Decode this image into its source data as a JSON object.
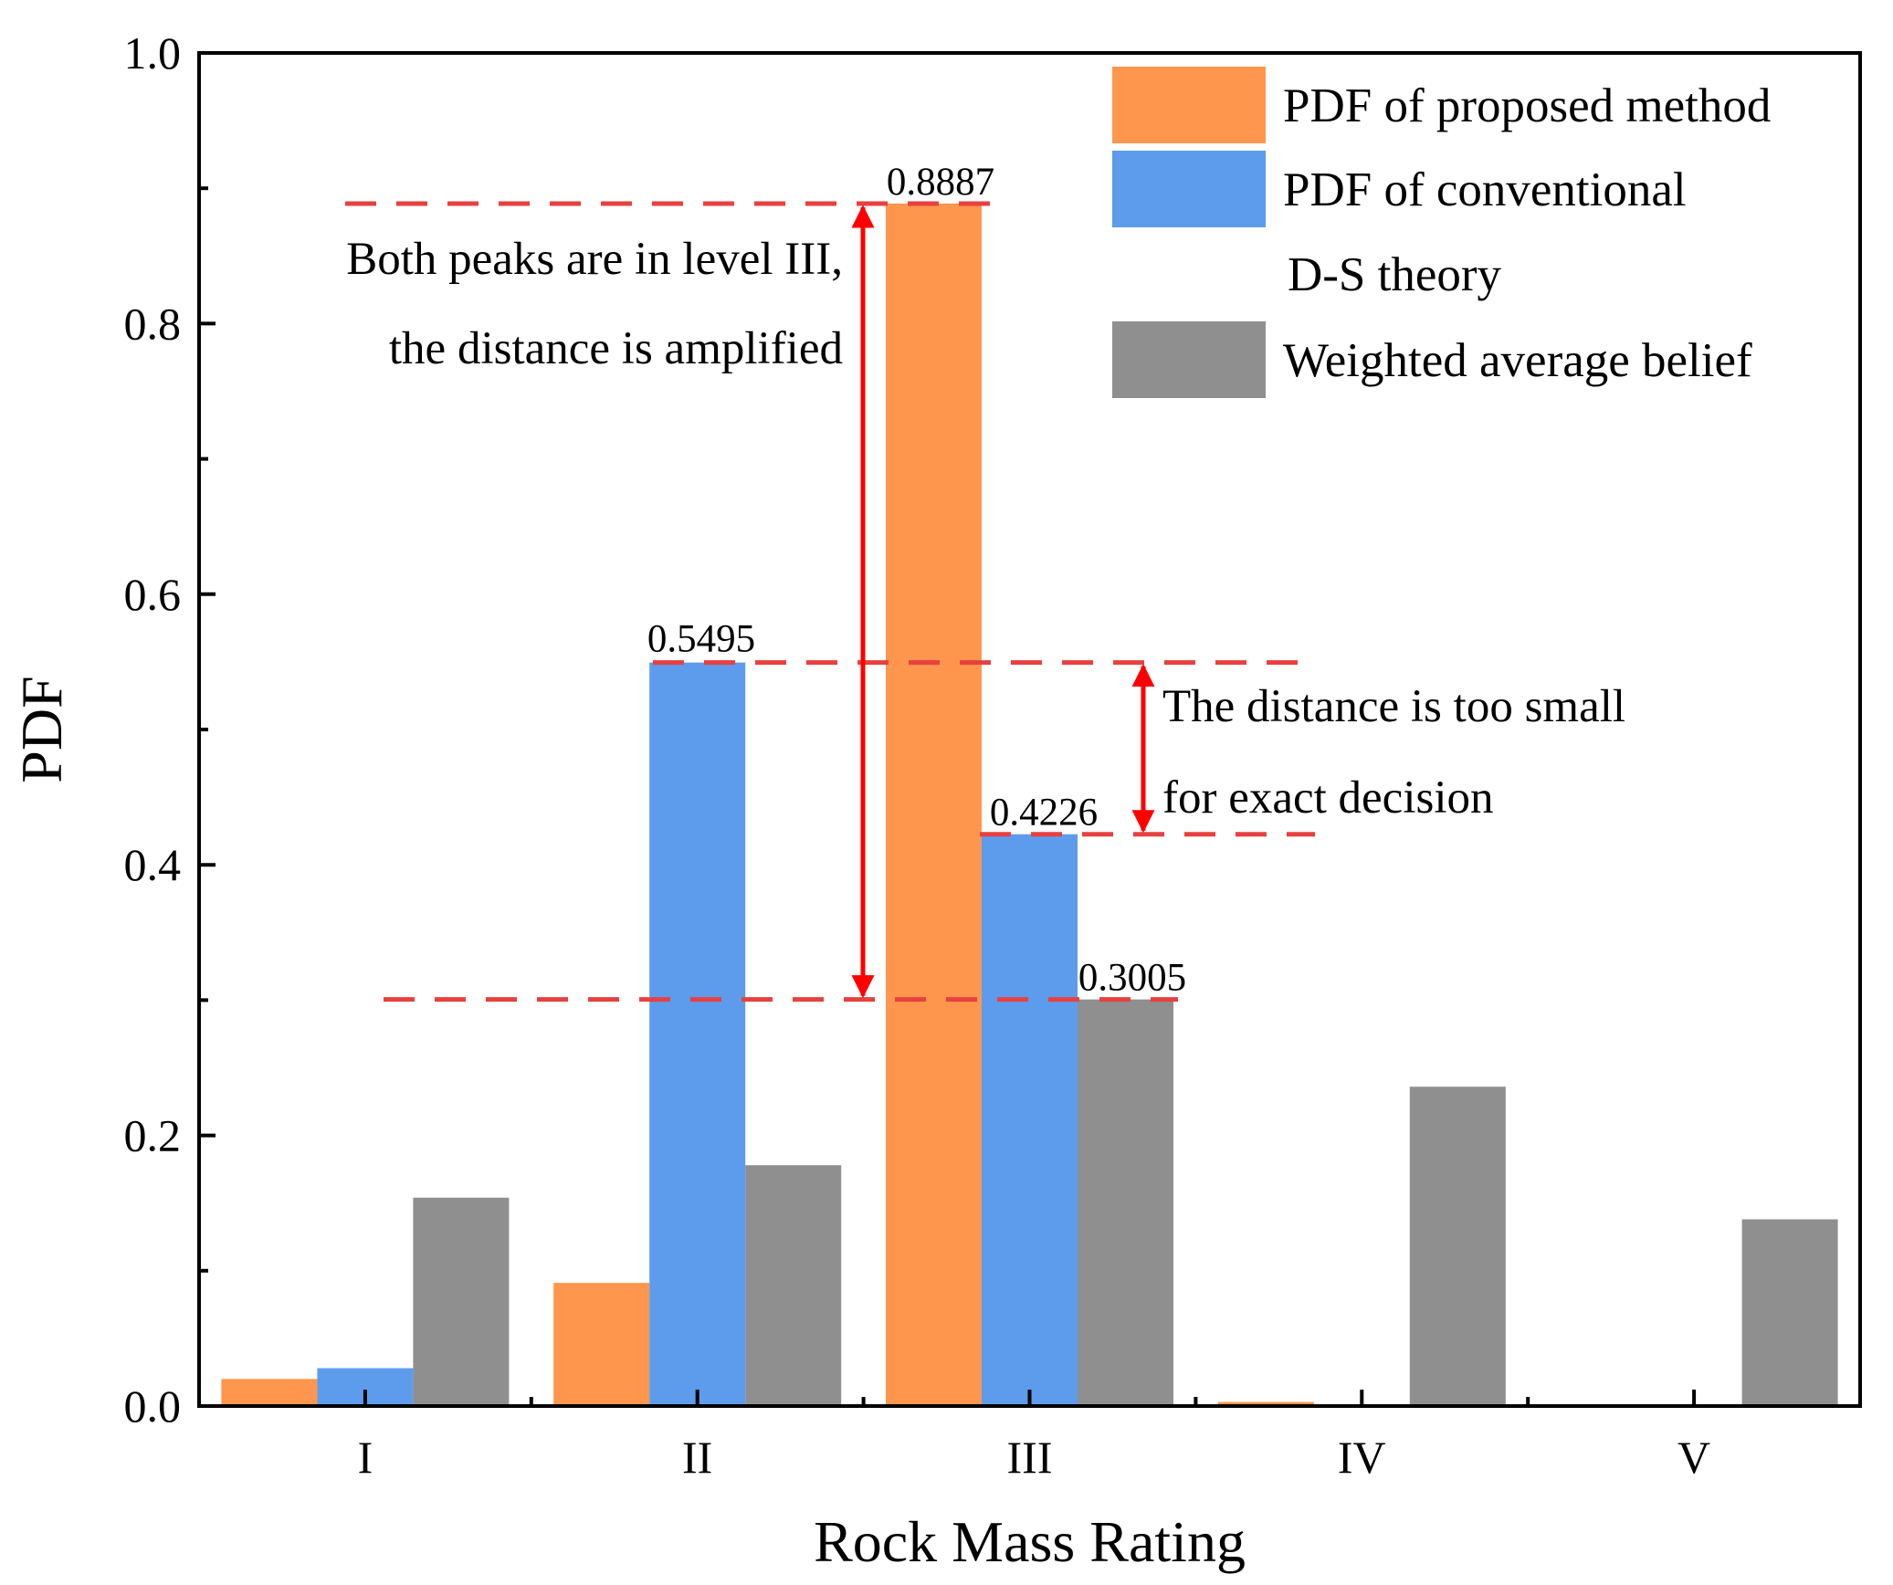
{
  "chart_data": {
    "type": "bar",
    "xlabel": "Rock Mass Rating",
    "ylabel": "PDF",
    "ylim": [
      0,
      1.0
    ],
    "yticks": [
      "0.0",
      "0.2",
      "0.4",
      "0.6",
      "0.8",
      "1.0"
    ],
    "categories": [
      "I",
      "II",
      "III",
      "IV",
      "V"
    ],
    "series": [
      {
        "name": "PDF of proposed method",
        "color": "#FF964D",
        "values": [
          0.02,
          0.091,
          0.8887,
          0.003,
          0.0
        ]
      },
      {
        "name": "PDF of conventional D-S theory",
        "color": "#5D9CEC",
        "values": [
          0.028,
          0.5495,
          0.4226,
          0.0,
          0.0
        ]
      },
      {
        "name": "Weighted average belief",
        "color": "#8F8F8F",
        "values": [
          0.154,
          0.178,
          0.3005,
          0.236,
          0.138
        ]
      }
    ],
    "legend": [
      {
        "lines": [
          "PDF of proposed method"
        ],
        "color": "#FF964D"
      },
      {
        "lines": [
          "PDF of conventional",
          "D-S theory"
        ],
        "color": "#5D9CEC"
      },
      {
        "lines": [
          "Weighted average belief"
        ],
        "color": "#8F8F8F"
      }
    ],
    "legend_position": "top-right",
    "value_labels": [
      "0.8887",
      "0.5495",
      "0.4226",
      "0.3005"
    ],
    "annotations": [
      {
        "lines": [
          "Both peaks are in level III,",
          "the distance is amplified"
        ]
      },
      {
        "lines": [
          "The distance is too small",
          "for exact decision"
        ]
      }
    ],
    "reference_lines": [
      0.8887,
      0.5495,
      0.4226,
      0.3005
    ]
  }
}
